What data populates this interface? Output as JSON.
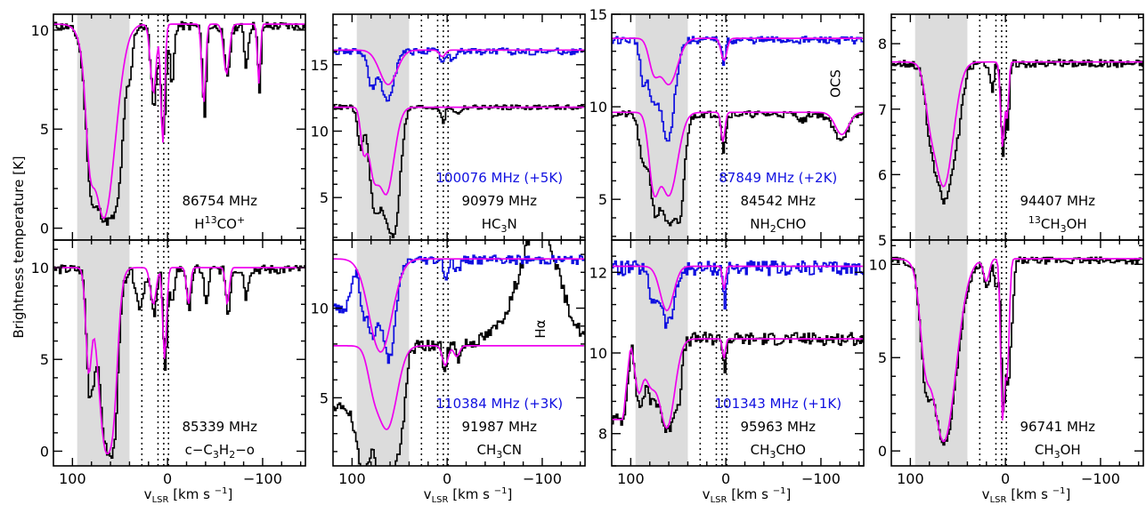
{
  "y_axis_label": "Brightness temperature [K]",
  "x_axis_label": "v",
  "x_axis_label_sub": "LSR",
  "x_axis_label_units": "[km s",
  "x_axis_label_exp": "−1",
  "x_axis_label_close": "]",
  "colors": {
    "observed": "#000000",
    "observed_shifted": "#1010e0",
    "model": "#ee00ee",
    "band": "#dcdcdc"
  },
  "chart_data": {
    "type": "line",
    "x_range": [
      120,
      -145
    ],
    "x_ticks": [
      100,
      0,
      -100
    ],
    "x_tick_labels": [
      "100",
      "0",
      "−100"
    ],
    "shaded_velocity_range": [
      95,
      40
    ],
    "dotted_velocity_lines": [
      27,
      10,
      4,
      -1
    ],
    "panels": [
      {
        "id": "p1",
        "col": 0,
        "row": 0,
        "ylim": [
          -0.6,
          10.8
        ],
        "yticks": [
          0,
          5,
          10
        ],
        "freq": "86754 MHz",
        "molecule": {
          "a": "H",
          "sup": "13",
          "b": "CO",
          "sup2": "+"
        },
        "series": [
          {
            "name": "observed",
            "style": "black"
          },
          {
            "name": "model",
            "style": "model"
          }
        ]
      },
      {
        "id": "p2",
        "col": 1,
        "row": 0,
        "ylim": [
          1.8,
          18.8
        ],
        "yticks": [
          5,
          10,
          15
        ],
        "freq": "90979 MHz",
        "freq_blue": "100076 MHz (+5K)",
        "molecule": {
          "a": "HC",
          "sub": "3",
          "b": "N"
        },
        "series": [
          {
            "name": "observed",
            "style": "black"
          },
          {
            "name": "observed +5K",
            "style": "blue"
          },
          {
            "name": "model",
            "style": "model"
          }
        ]
      },
      {
        "id": "p3",
        "col": 2,
        "row": 0,
        "ylim": [
          2.8,
          15
        ],
        "yticks": [
          5,
          10,
          15
        ],
        "freq": "84542 MHz",
        "freq_blue": "87849 MHz (+2K)",
        "molecule": {
          "a": "NH",
          "sub": "2",
          "b": "CHO"
        },
        "annotation": "OCS",
        "series": [
          {
            "name": "observed",
            "style": "black"
          },
          {
            "name": "observed +2K",
            "style": "blue"
          },
          {
            "name": "model",
            "style": "model"
          }
        ]
      },
      {
        "id": "p4",
        "col": 3,
        "row": 0,
        "ylim": [
          5,
          8.45
        ],
        "yticks": [
          5,
          6,
          7,
          8
        ],
        "freq": "94407 MHz",
        "molecule": {
          "sup": "13",
          "a": "CH",
          "sub": "3",
          "b": "OH"
        },
        "series": [
          {
            "name": "observed",
            "style": "black"
          },
          {
            "name": "model",
            "style": "model"
          }
        ]
      },
      {
        "id": "p5",
        "col": 0,
        "row": 1,
        "ylim": [
          -0.8,
          11.5
        ],
        "yticks": [
          0,
          5,
          10
        ],
        "freq": "85339 MHz",
        "molecule": {
          "a": "c−C",
          "sub": "3",
          "b": "H",
          "sub2": "2",
          "c": "−o"
        },
        "series": [
          {
            "name": "observed",
            "style": "black"
          },
          {
            "name": "model",
            "style": "model"
          }
        ]
      },
      {
        "id": "p6",
        "col": 1,
        "row": 1,
        "ylim": [
          1.2,
          13.8
        ],
        "yticks": [
          5,
          10
        ],
        "freq": "91987 MHz",
        "freq_blue": "110384 MHz (+3K)",
        "molecule": {
          "a": "CH",
          "sub": "3",
          "b": "CN"
        },
        "annotation": "Hα",
        "series": [
          {
            "name": "observed",
            "style": "black"
          },
          {
            "name": "observed +3K",
            "style": "blue"
          },
          {
            "name": "model",
            "style": "model"
          }
        ]
      },
      {
        "id": "p7",
        "col": 2,
        "row": 1,
        "ylim": [
          7.2,
          12.8
        ],
        "yticks": [
          8,
          10,
          12
        ],
        "freq": "95963 MHz",
        "freq_blue": "101343 MHz (+1K)",
        "molecule": {
          "a": "CH",
          "sub": "3",
          "b": "CHO"
        },
        "series": [
          {
            "name": "observed",
            "style": "black"
          },
          {
            "name": "observed +1K",
            "style": "blue"
          },
          {
            "name": "model",
            "style": "model"
          }
        ]
      },
      {
        "id": "p8",
        "col": 3,
        "row": 1,
        "ylim": [
          -0.8,
          11.3
        ],
        "yticks": [
          0,
          5,
          10
        ],
        "freq": "96741 MHz",
        "molecule": {
          "a": "CH",
          "sub": "3",
          "b": "OH"
        },
        "series": [
          {
            "name": "observed",
            "style": "black"
          },
          {
            "name": "model",
            "style": "model"
          }
        ]
      }
    ]
  }
}
